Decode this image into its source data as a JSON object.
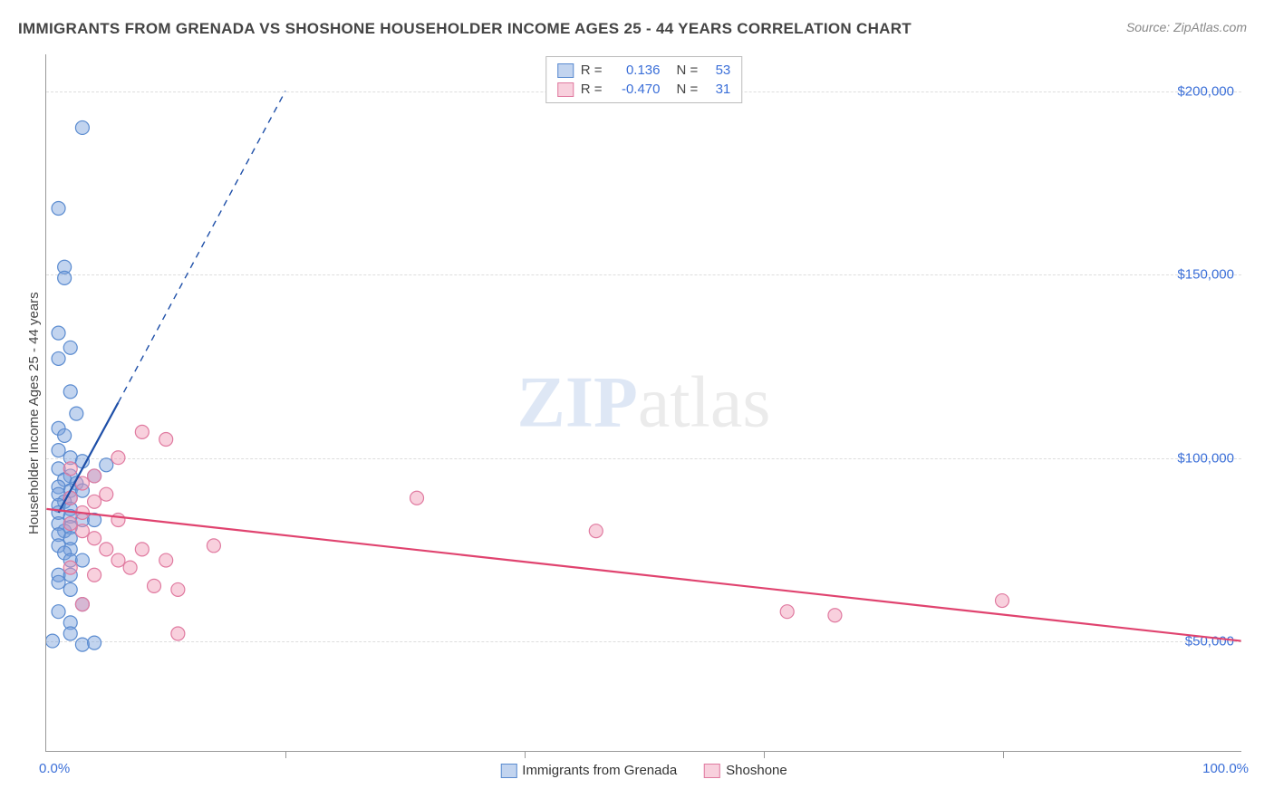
{
  "title": "IMMIGRANTS FROM GRENADA VS SHOSHONE HOUSEHOLDER INCOME AGES 25 - 44 YEARS CORRELATION CHART",
  "source": "Source: ZipAtlas.com",
  "watermark_a": "ZIP",
  "watermark_b": "atlas",
  "chart": {
    "type": "scatter",
    "background_color": "#ffffff",
    "grid_color": "#dddddd",
    "axis_color": "#999999",
    "x_axis": {
      "min": 0,
      "max": 100,
      "label_left": "0.0%",
      "label_right": "100.0%",
      "tick_step": 20
    },
    "y_axis": {
      "min": 20000,
      "max": 210000,
      "label": "Householder Income Ages 25 - 44 years",
      "ticks": [
        {
          "v": 50000,
          "label": "$50,000"
        },
        {
          "v": 100000,
          "label": "$100,000"
        },
        {
          "v": 150000,
          "label": "$150,000"
        },
        {
          "v": 200000,
          "label": "$200,000"
        }
      ]
    },
    "series": [
      {
        "name": "Immigrants from Grenada",
        "marker_fill": "rgba(120,160,220,0.45)",
        "marker_stroke": "#5a8bd0",
        "line_stroke": "#1e4fa8",
        "r_value": "0.136",
        "n_value": "53",
        "points": [
          [
            3,
            190000
          ],
          [
            1,
            168000
          ],
          [
            1.5,
            152000
          ],
          [
            1.5,
            149000
          ],
          [
            1,
            134000
          ],
          [
            2,
            130000
          ],
          [
            1,
            127000
          ],
          [
            2,
            118000
          ],
          [
            2.5,
            112000
          ],
          [
            1,
            108000
          ],
          [
            1.5,
            106000
          ],
          [
            1,
            102000
          ],
          [
            2,
            100000
          ],
          [
            3,
            99000
          ],
          [
            1,
            97000
          ],
          [
            2,
            95000
          ],
          [
            1.5,
            94000
          ],
          [
            2.5,
            93000
          ],
          [
            1,
            92000
          ],
          [
            2,
            91000
          ],
          [
            3,
            91000
          ],
          [
            1,
            90000
          ],
          [
            2,
            89000
          ],
          [
            1.5,
            88000
          ],
          [
            1,
            87000
          ],
          [
            2,
            86000
          ],
          [
            5,
            98000
          ],
          [
            4,
            95000
          ],
          [
            1,
            85000
          ],
          [
            2,
            84000
          ],
          [
            3,
            83000
          ],
          [
            1,
            82000
          ],
          [
            2,
            81000
          ],
          [
            1.5,
            80000
          ],
          [
            4,
            83000
          ],
          [
            1,
            79000
          ],
          [
            2,
            78000
          ],
          [
            1,
            76000
          ],
          [
            2,
            75000
          ],
          [
            1.5,
            74000
          ],
          [
            2,
            72000
          ],
          [
            3,
            72000
          ],
          [
            1,
            68000
          ],
          [
            2,
            68000
          ],
          [
            1,
            66000
          ],
          [
            2,
            64000
          ],
          [
            3,
            60000
          ],
          [
            1,
            58000
          ],
          [
            2,
            55000
          ],
          [
            0.5,
            50000
          ],
          [
            3,
            49000
          ],
          [
            4,
            49500
          ],
          [
            2,
            52000
          ]
        ],
        "trend": {
          "x1": 1,
          "y1": 85000,
          "x2": 6,
          "y2": 115000,
          "ext_x": 20,
          "ext_y": 200000,
          "dashed_ext": true
        }
      },
      {
        "name": "Shoshone",
        "marker_fill": "rgba(240,150,180,0.45)",
        "marker_stroke": "#e07aa0",
        "line_stroke": "#e0436f",
        "r_value": "-0.470",
        "n_value": "31",
        "points": [
          [
            8,
            107000
          ],
          [
            10,
            105000
          ],
          [
            6,
            100000
          ],
          [
            2,
            97000
          ],
          [
            4,
            95000
          ],
          [
            3,
            93000
          ],
          [
            5,
            90000
          ],
          [
            2,
            89000
          ],
          [
            4,
            88000
          ],
          [
            31,
            89000
          ],
          [
            3,
            85000
          ],
          [
            6,
            83000
          ],
          [
            2,
            82000
          ],
          [
            3,
            80000
          ],
          [
            4,
            78000
          ],
          [
            46,
            80000
          ],
          [
            5,
            75000
          ],
          [
            8,
            75000
          ],
          [
            6,
            72000
          ],
          [
            14,
            76000
          ],
          [
            7,
            70000
          ],
          [
            2,
            70000
          ],
          [
            4,
            68000
          ],
          [
            9,
            65000
          ],
          [
            10,
            72000
          ],
          [
            11,
            64000
          ],
          [
            62,
            58000
          ],
          [
            66,
            57000
          ],
          [
            80,
            61000
          ],
          [
            11,
            52000
          ],
          [
            3,
            60000
          ]
        ],
        "trend": {
          "x1": 0,
          "y1": 86000,
          "x2": 100,
          "y2": 50000,
          "dashed_ext": false
        }
      }
    ],
    "legend_bottom": [
      {
        "swatch_fill": "rgba(120,160,220,0.45)",
        "swatch_stroke": "#5a8bd0",
        "label": "Immigrants from Grenada"
      },
      {
        "swatch_fill": "rgba(240,150,180,0.45)",
        "swatch_stroke": "#e07aa0",
        "label": "Shoshone"
      }
    ],
    "legend_top_labels": {
      "r": "R =",
      "n": "N ="
    },
    "marker_radius": 7.5,
    "label_fontsize": 15,
    "title_fontsize": 17
  }
}
